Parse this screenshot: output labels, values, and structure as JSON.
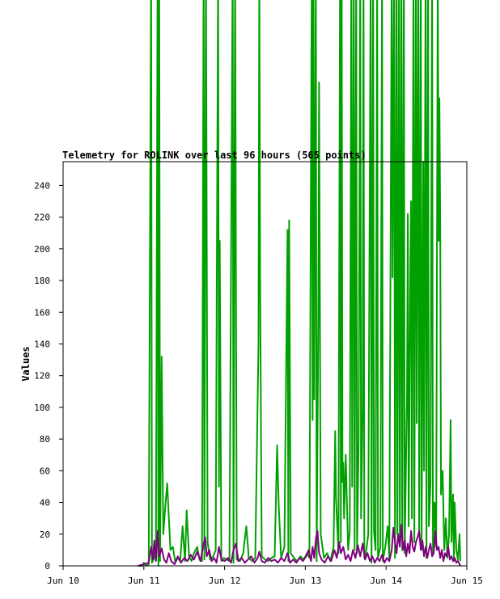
{
  "chart_data": {
    "type": "line",
    "title": "Telemetry for ROLINK over last 96 hours (565 points)",
    "xlabel": "",
    "ylabel": "Values",
    "x_ticks": [
      "Jun 10",
      "Jun 11",
      "Jun 12",
      "Jun 13",
      "Jun 14",
      "Jun 15"
    ],
    "y_ticks": [
      0,
      20,
      40,
      60,
      80,
      100,
      120,
      140,
      160,
      180,
      200,
      220,
      240
    ],
    "xlim": [
      0,
      5
    ],
    "ylim": [
      0,
      255
    ],
    "grid": false,
    "series": [
      {
        "color": "#00a000",
        "points": [
          [
            0.93,
            0
          ],
          [
            0.98,
            0
          ],
          [
            1.0,
            2
          ],
          [
            1.03,
            0
          ],
          [
            1.06,
            1
          ],
          [
            1.09,
            380
          ],
          [
            1.1,
            2
          ],
          [
            1.13,
            5
          ],
          [
            1.15,
            15
          ],
          [
            1.17,
            380
          ],
          [
            1.18,
            0
          ],
          [
            1.19,
            380
          ],
          [
            1.2,
            3
          ],
          [
            1.22,
            132
          ],
          [
            1.24,
            20
          ],
          [
            1.27,
            40
          ],
          [
            1.29,
            52
          ],
          [
            1.31,
            30
          ],
          [
            1.33,
            10
          ],
          [
            1.36,
            12
          ],
          [
            1.39,
            2
          ],
          [
            1.42,
            5
          ],
          [
            1.45,
            3
          ],
          [
            1.48,
            25
          ],
          [
            1.51,
            3
          ],
          [
            1.53,
            35
          ],
          [
            1.56,
            6
          ],
          [
            1.59,
            3
          ],
          [
            1.62,
            8
          ],
          [
            1.66,
            12
          ],
          [
            1.69,
            4
          ],
          [
            1.72,
            3
          ],
          [
            1.74,
            380
          ],
          [
            1.75,
            4
          ],
          [
            1.77,
            380
          ],
          [
            1.79,
            15
          ],
          [
            1.82,
            4
          ],
          [
            1.86,
            6
          ],
          [
            1.89,
            10
          ],
          [
            1.92,
            380
          ],
          [
            1.93,
            50
          ],
          [
            1.94,
            205
          ],
          [
            1.96,
            3
          ],
          [
            1.99,
            5
          ],
          [
            2.02,
            4
          ],
          [
            2.06,
            3
          ],
          [
            2.1,
            380
          ],
          [
            2.11,
            2
          ],
          [
            2.13,
            380
          ],
          [
            2.15,
            4
          ],
          [
            2.19,
            3
          ],
          [
            2.23,
            8
          ],
          [
            2.27,
            25
          ],
          [
            2.3,
            5
          ],
          [
            2.34,
            3
          ],
          [
            2.38,
            5
          ],
          [
            2.42,
            140
          ],
          [
            2.43,
            380
          ],
          [
            2.44,
            185
          ],
          [
            2.46,
            6
          ],
          [
            2.5,
            4
          ],
          [
            2.54,
            3
          ],
          [
            2.58,
            5
          ],
          [
            2.62,
            6
          ],
          [
            2.65,
            76
          ],
          [
            2.67,
            38
          ],
          [
            2.7,
            5
          ],
          [
            2.74,
            12
          ],
          [
            2.78,
            212
          ],
          [
            2.79,
            3
          ],
          [
            2.8,
            218
          ],
          [
            2.82,
            8
          ],
          [
            2.86,
            5
          ],
          [
            2.9,
            3
          ],
          [
            2.94,
            6
          ],
          [
            2.98,
            4
          ],
          [
            3.02,
            8
          ],
          [
            3.05,
            5
          ],
          [
            3.08,
            380
          ],
          [
            3.09,
            92
          ],
          [
            3.1,
            380
          ],
          [
            3.11,
            105
          ],
          [
            3.13,
            380
          ],
          [
            3.14,
            3
          ],
          [
            3.16,
            155
          ],
          [
            3.17,
            305
          ],
          [
            3.19,
            20
          ],
          [
            3.23,
            5
          ],
          [
            3.27,
            8
          ],
          [
            3.31,
            3
          ],
          [
            3.35,
            12
          ],
          [
            3.37,
            85
          ],
          [
            3.38,
            43
          ],
          [
            3.41,
            8
          ],
          [
            3.43,
            375
          ],
          [
            3.44,
            15
          ],
          [
            3.45,
            380
          ],
          [
            3.46,
            53
          ],
          [
            3.47,
            65
          ],
          [
            3.48,
            30
          ],
          [
            3.5,
            70
          ],
          [
            3.53,
            10
          ],
          [
            3.55,
            22
          ],
          [
            3.57,
            380
          ],
          [
            3.58,
            50
          ],
          [
            3.6,
            380
          ],
          [
            3.61,
            10
          ],
          [
            3.63,
            380
          ],
          [
            3.64,
            8
          ],
          [
            3.66,
            80
          ],
          [
            3.68,
            380
          ],
          [
            3.69,
            30
          ],
          [
            3.71,
            100
          ],
          [
            3.72,
            380
          ],
          [
            3.73,
            5
          ],
          [
            3.75,
            8
          ],
          [
            3.78,
            20
          ],
          [
            3.81,
            380
          ],
          [
            3.82,
            2
          ],
          [
            3.84,
            380
          ],
          [
            3.85,
            22
          ],
          [
            3.87,
            10
          ],
          [
            3.89,
            380
          ],
          [
            3.9,
            5
          ],
          [
            3.93,
            12
          ],
          [
            3.95,
            380
          ],
          [
            3.96,
            3
          ],
          [
            3.99,
            12
          ],
          [
            4.02,
            25
          ],
          [
            4.04,
            5
          ],
          [
            4.07,
            380
          ],
          [
            4.08,
            182
          ],
          [
            4.1,
            380
          ],
          [
            4.11,
            5
          ],
          [
            4.13,
            380
          ],
          [
            4.14,
            20
          ],
          [
            4.16,
            380
          ],
          [
            4.17,
            14
          ],
          [
            4.19,
            380
          ],
          [
            4.2,
            10
          ],
          [
            4.22,
            380
          ],
          [
            4.23,
            8
          ],
          [
            4.26,
            110
          ],
          [
            4.27,
            222
          ],
          [
            4.28,
            25
          ],
          [
            4.3,
            185
          ],
          [
            4.31,
            230
          ],
          [
            4.32,
            30
          ],
          [
            4.34,
            380
          ],
          [
            4.35,
            15
          ],
          [
            4.37,
            380
          ],
          [
            4.38,
            90
          ],
          [
            4.4,
            380
          ],
          [
            4.41,
            20
          ],
          [
            4.43,
            380
          ],
          [
            4.44,
            10
          ],
          [
            4.46,
            255
          ],
          [
            4.47,
            60
          ],
          [
            4.49,
            380
          ],
          [
            4.5,
            5
          ],
          [
            4.52,
            380
          ],
          [
            4.53,
            25
          ],
          [
            4.55,
            52
          ],
          [
            4.57,
            380
          ],
          [
            4.58,
            8
          ],
          [
            4.6,
            40
          ],
          [
            4.62,
            12
          ],
          [
            4.64,
            380
          ],
          [
            4.65,
            205
          ],
          [
            4.66,
            295
          ],
          [
            4.67,
            218
          ],
          [
            4.68,
            45
          ],
          [
            4.7,
            60
          ],
          [
            4.72,
            10
          ],
          [
            4.74,
            30
          ],
          [
            4.76,
            5
          ],
          [
            4.78,
            20
          ],
          [
            4.8,
            92
          ],
          [
            4.81,
            15
          ],
          [
            4.83,
            45
          ],
          [
            4.84,
            3
          ],
          [
            4.85,
            40
          ],
          [
            4.87,
            10
          ],
          [
            4.89,
            4
          ],
          [
            4.91,
            20
          ],
          [
            4.92,
            3
          ]
        ]
      },
      {
        "color": "#800080",
        "points": [
          [
            0.93,
            0
          ],
          [
            1.0,
            1
          ],
          [
            1.06,
            2
          ],
          [
            1.09,
            12
          ],
          [
            1.11,
            4
          ],
          [
            1.13,
            16
          ],
          [
            1.15,
            3
          ],
          [
            1.17,
            22
          ],
          [
            1.19,
            6
          ],
          [
            1.22,
            11
          ],
          [
            1.25,
            4
          ],
          [
            1.28,
            2
          ],
          [
            1.31,
            8
          ],
          [
            1.34,
            3
          ],
          [
            1.38,
            1
          ],
          [
            1.42,
            6
          ],
          [
            1.46,
            2
          ],
          [
            1.5,
            5
          ],
          [
            1.54,
            3
          ],
          [
            1.58,
            7
          ],
          [
            1.62,
            4
          ],
          [
            1.66,
            9
          ],
          [
            1.7,
            3
          ],
          [
            1.74,
            14
          ],
          [
            1.76,
            18
          ],
          [
            1.78,
            6
          ],
          [
            1.81,
            10
          ],
          [
            1.84,
            3
          ],
          [
            1.87,
            5
          ],
          [
            1.9,
            2
          ],
          [
            1.93,
            12
          ],
          [
            1.96,
            4
          ],
          [
            2.0,
            3
          ],
          [
            2.04,
            5
          ],
          [
            2.08,
            2
          ],
          [
            2.11,
            10
          ],
          [
            2.14,
            14
          ],
          [
            2.17,
            3
          ],
          [
            2.21,
            5
          ],
          [
            2.25,
            2
          ],
          [
            2.29,
            4
          ],
          [
            2.33,
            6
          ],
          [
            2.37,
            2
          ],
          [
            2.41,
            5
          ],
          [
            2.43,
            9
          ],
          [
            2.46,
            3
          ],
          [
            2.5,
            2
          ],
          [
            2.54,
            5
          ],
          [
            2.58,
            3
          ],
          [
            2.62,
            4
          ],
          [
            2.66,
            2
          ],
          [
            2.7,
            5
          ],
          [
            2.74,
            3
          ],
          [
            2.78,
            8
          ],
          [
            2.81,
            2
          ],
          [
            2.85,
            4
          ],
          [
            2.89,
            2
          ],
          [
            2.93,
            5
          ],
          [
            2.97,
            3
          ],
          [
            3.01,
            6
          ],
          [
            3.04,
            10
          ],
          [
            3.07,
            3
          ],
          [
            3.09,
            12
          ],
          [
            3.11,
            5
          ],
          [
            3.13,
            17
          ],
          [
            3.15,
            22
          ],
          [
            3.17,
            8
          ],
          [
            3.2,
            4
          ],
          [
            3.24,
            2
          ],
          [
            3.28,
            6
          ],
          [
            3.32,
            3
          ],
          [
            3.36,
            10
          ],
          [
            3.39,
            5
          ],
          [
            3.42,
            15
          ],
          [
            3.44,
            8
          ],
          [
            3.47,
            12
          ],
          [
            3.5,
            4
          ],
          [
            3.53,
            7
          ],
          [
            3.56,
            3
          ],
          [
            3.59,
            10
          ],
          [
            3.62,
            5
          ],
          [
            3.65,
            13
          ],
          [
            3.68,
            6
          ],
          [
            3.71,
            14
          ],
          [
            3.74,
            4
          ],
          [
            3.77,
            8
          ],
          [
            3.8,
            3
          ],
          [
            3.83,
            6
          ],
          [
            3.86,
            2
          ],
          [
            3.89,
            5
          ],
          [
            3.92,
            3
          ],
          [
            3.95,
            7
          ],
          [
            3.98,
            2
          ],
          [
            4.01,
            5
          ],
          [
            4.04,
            3
          ],
          [
            4.07,
            10
          ],
          [
            4.09,
            24
          ],
          [
            4.11,
            15
          ],
          [
            4.13,
            8
          ],
          [
            4.15,
            20
          ],
          [
            4.17,
            12
          ],
          [
            4.19,
            26
          ],
          [
            4.21,
            10
          ],
          [
            4.23,
            16
          ],
          [
            4.25,
            6
          ],
          [
            4.27,
            14
          ],
          [
            4.29,
            8
          ],
          [
            4.31,
            22
          ],
          [
            4.33,
            12
          ],
          [
            4.35,
            9
          ],
          [
            4.37,
            15
          ],
          [
            4.39,
            18
          ],
          [
            4.41,
            22
          ],
          [
            4.43,
            10
          ],
          [
            4.45,
            16
          ],
          [
            4.47,
            6
          ],
          [
            4.49,
            12
          ],
          [
            4.51,
            5
          ],
          [
            4.53,
            10
          ],
          [
            4.55,
            14
          ],
          [
            4.57,
            6
          ],
          [
            4.59,
            8
          ],
          [
            4.61,
            22
          ],
          [
            4.63,
            10
          ],
          [
            4.65,
            12
          ],
          [
            4.67,
            5
          ],
          [
            4.69,
            10
          ],
          [
            4.71,
            3
          ],
          [
            4.73,
            8
          ],
          [
            4.75,
            6
          ],
          [
            4.77,
            12
          ],
          [
            4.79,
            4
          ],
          [
            4.81,
            6
          ],
          [
            4.83,
            3
          ],
          [
            4.85,
            5
          ],
          [
            4.87,
            2
          ],
          [
            4.89,
            3
          ],
          [
            4.91,
            1
          ],
          [
            4.92,
            0
          ]
        ]
      }
    ]
  }
}
